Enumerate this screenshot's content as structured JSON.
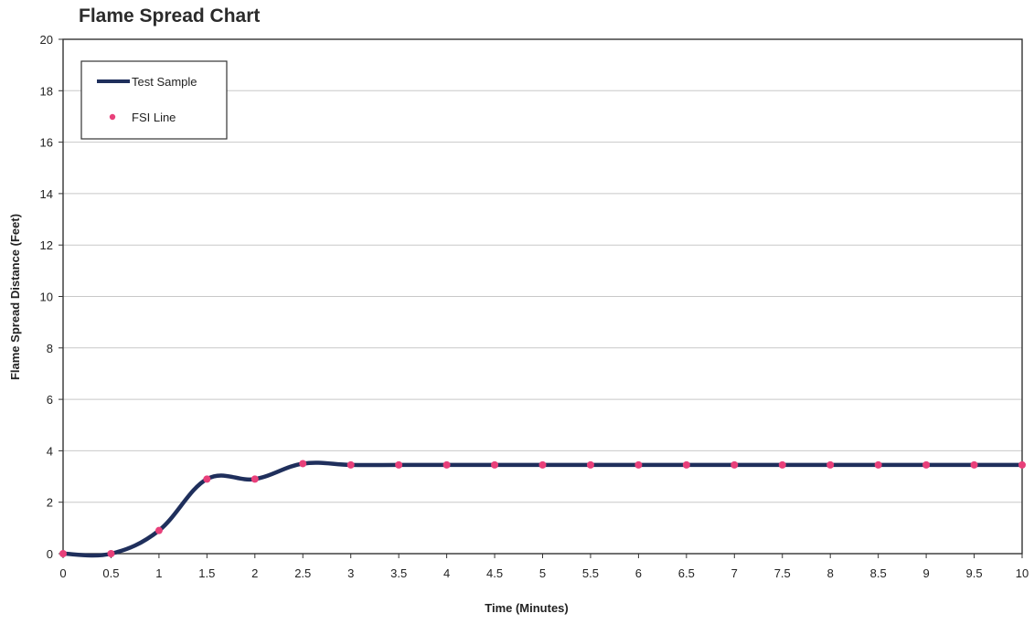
{
  "chart_data": {
    "type": "line",
    "title": "Flame Spread Chart",
    "xlabel": "Time (Minutes)",
    "ylabel": "Flame Spread Distance (Feet)",
    "xlim": [
      0,
      10
    ],
    "ylim": [
      0,
      20
    ],
    "x_ticks": [
      "0",
      "0.5",
      "1",
      "1.5",
      "2",
      "2.5",
      "3",
      "3.5",
      "4",
      "4.5",
      "5",
      "5.5",
      "6",
      "6.5",
      "7",
      "7.5",
      "8",
      "8.5",
      "9",
      "9.5",
      "10"
    ],
    "y_ticks": [
      "0",
      "2",
      "4",
      "6",
      "8",
      "10",
      "12",
      "14",
      "16",
      "18",
      "20"
    ],
    "grid": true,
    "legend_position": "top-left",
    "x": [
      0,
      0.5,
      1,
      1.5,
      2,
      2.5,
      3,
      3.5,
      4,
      4.5,
      5,
      5.5,
      6,
      6.5,
      7,
      7.5,
      8,
      8.5,
      9,
      9.5,
      10
    ],
    "series": [
      {
        "name": "Test Sample",
        "style": "line",
        "color": "#1f2f5c",
        "values": [
          0,
          0,
          0.9,
          2.9,
          2.9,
          3.5,
          3.45,
          3.45,
          3.45,
          3.45,
          3.45,
          3.45,
          3.45,
          3.45,
          3.45,
          3.45,
          3.45,
          3.45,
          3.45,
          3.45,
          3.45
        ]
      },
      {
        "name": "FSI Line",
        "style": "markers",
        "color": "#e8407a",
        "values": [
          0,
          0,
          0.9,
          2.9,
          2.9,
          3.5,
          3.45,
          3.45,
          3.45,
          3.45,
          3.45,
          3.45,
          3.45,
          3.45,
          3.45,
          3.45,
          3.45,
          3.45,
          3.45,
          3.45,
          3.45
        ]
      }
    ]
  }
}
